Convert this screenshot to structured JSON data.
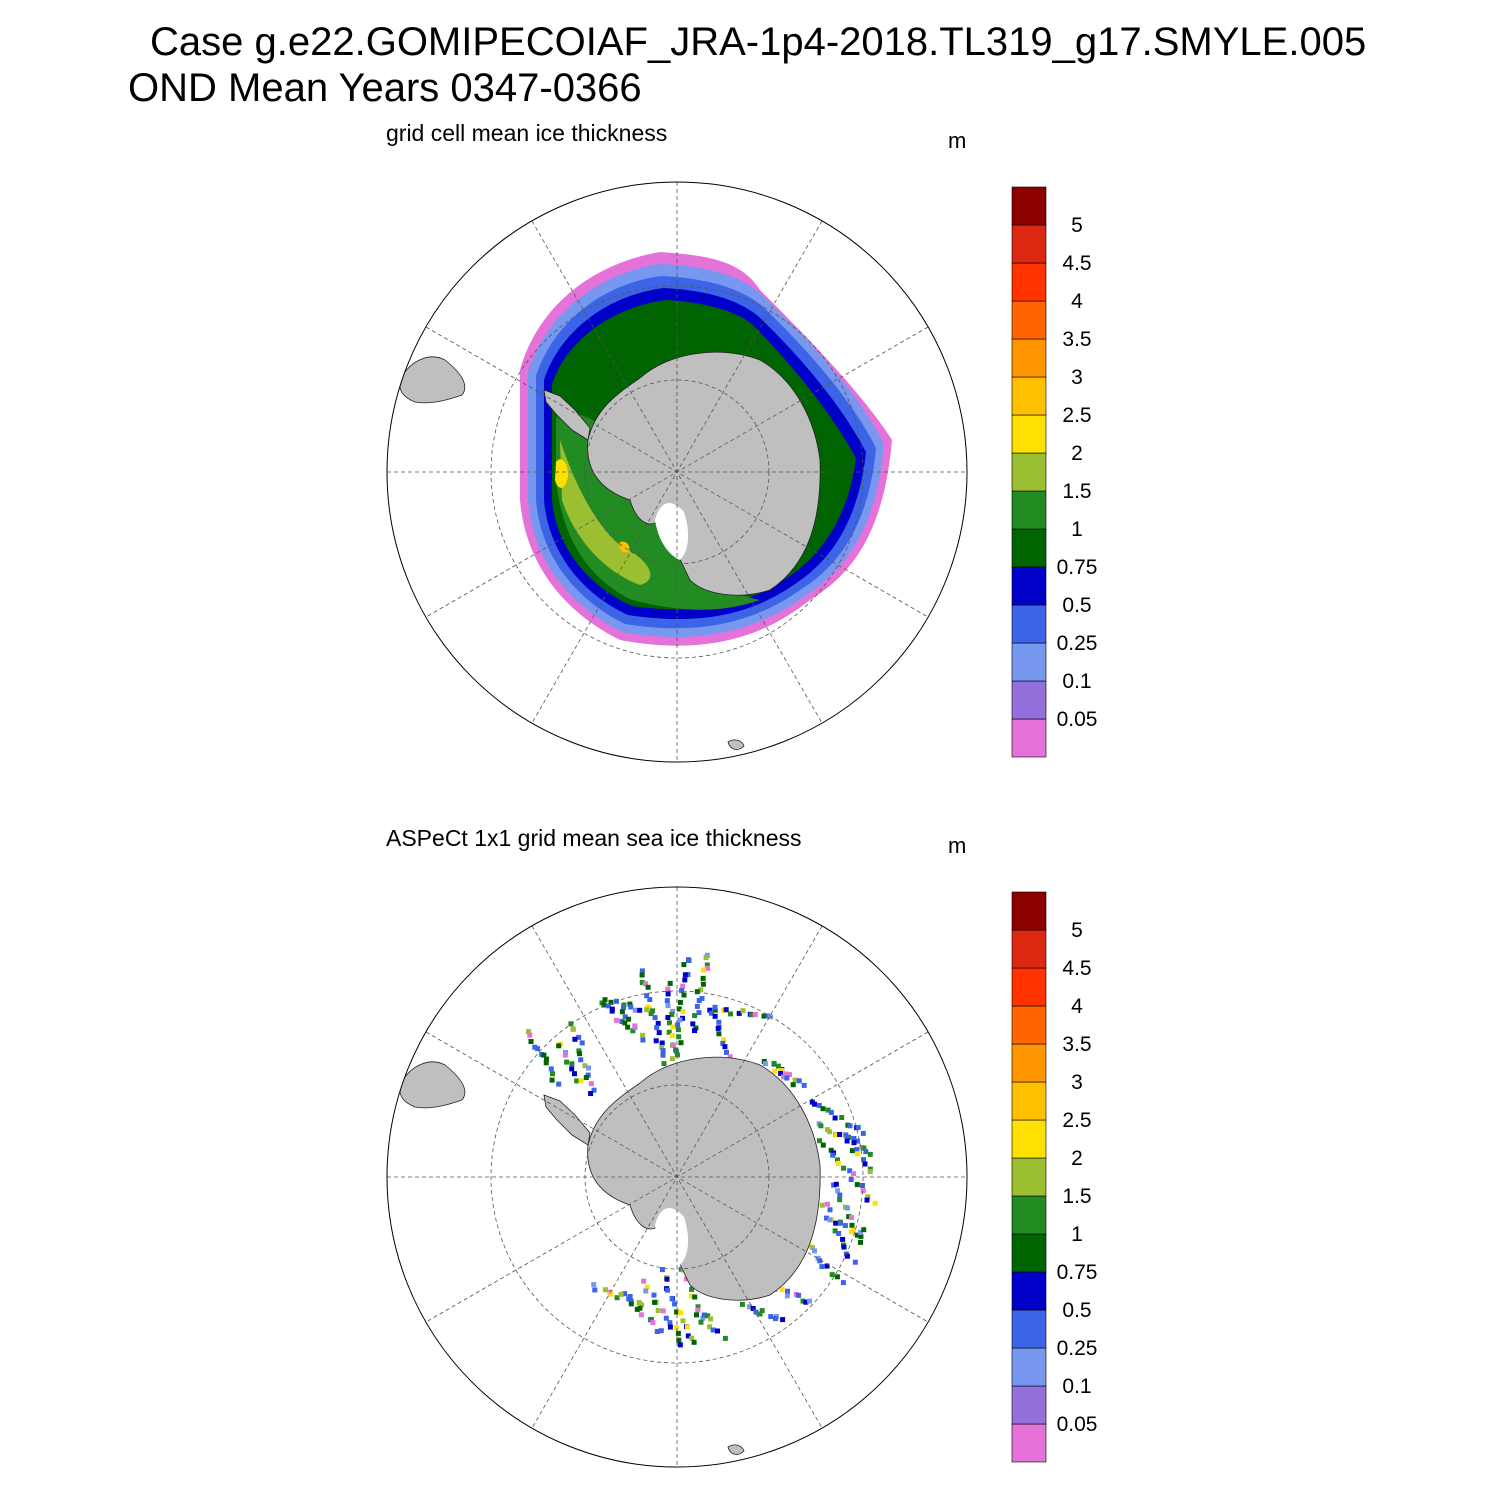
{
  "title": {
    "line1": "Case g.e22.GOMIPECOIAF_JRA-1p4-2018.TL319_g17.SMYLE.005",
    "line2": "OND Mean   Years 0347-0366"
  },
  "panels": [
    {
      "title": "grid cell mean ice thickness",
      "units": "m"
    },
    {
      "title": "ASPeCt 1x1 grid mean sea ice thickness",
      "units": "m"
    }
  ],
  "colorbar": {
    "labels": [
      "0.05",
      "0.1",
      "0.25",
      "0.5",
      "0.75",
      "1",
      "1.5",
      "2",
      "2.5",
      "3",
      "3.5",
      "4",
      "4.5",
      "5"
    ],
    "colors": [
      "#e472d8",
      "#9470dc",
      "#7898f0",
      "#3c64e6",
      "#0000c8",
      "#006400",
      "#228b22",
      "#9cbf32",
      "#ffe000",
      "#ffc000",
      "#ff9600",
      "#ff6400",
      "#ff3200",
      "#dc2810",
      "#8c0000"
    ]
  },
  "colors": {
    "land": "#bfbfbf",
    "gridline": "#555555"
  }
}
